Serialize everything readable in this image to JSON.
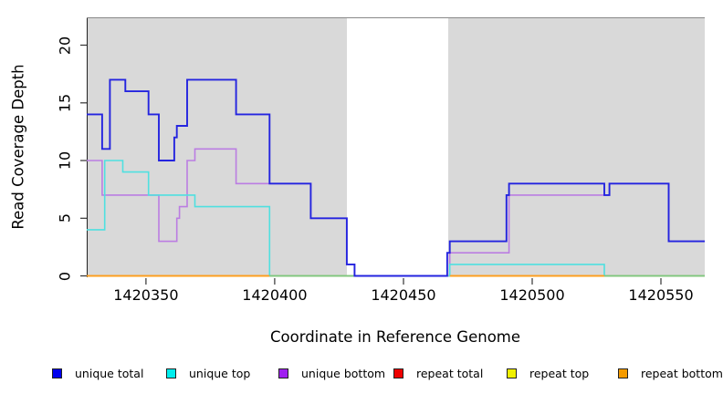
{
  "figure": {
    "background": "#ffffff",
    "panel_background": "#d9d9d9",
    "no_data_band_color": "#ffffff"
  },
  "chart_data": {
    "type": "line",
    "subtype": "step",
    "title": "",
    "xlabel": "Coordinate in Reference Genome",
    "ylabel": "Read Coverage Depth",
    "x_ticks": [
      1420350,
      1420400,
      1420450,
      1420500,
      1420550
    ],
    "y_ticks": [
      0,
      5,
      10,
      15,
      20
    ],
    "x_range": [
      1420327,
      1420567
    ],
    "y_range": [
      0,
      22.3
    ],
    "grid": false,
    "no_data_region": {
      "from": 1420428,
      "to": 1420467.5
    },
    "series": [
      {
        "name": "unique total",
        "color": "#2424df",
        "steps": [
          [
            1420327,
            14
          ],
          [
            1420333,
            11
          ],
          [
            1420336,
            17
          ],
          [
            1420342,
            16
          ],
          [
            1420351,
            14
          ],
          [
            1420355,
            10
          ],
          [
            1420361,
            12
          ],
          [
            1420362,
            13
          ],
          [
            1420366,
            17
          ],
          [
            1420385,
            14
          ],
          [
            1420398,
            8
          ],
          [
            1420414,
            5
          ],
          [
            1420428,
            1
          ],
          [
            1420431,
            0
          ],
          [
            1420467,
            2
          ],
          [
            1420468,
            3
          ],
          [
            1420490,
            7
          ],
          [
            1420491,
            8
          ],
          [
            1420528,
            7
          ],
          [
            1420530,
            8
          ],
          [
            1420553,
            3
          ]
        ]
      },
      {
        "name": "unique top",
        "color": "#4fe0e0",
        "steps": [
          [
            1420327,
            4
          ],
          [
            1420334,
            10
          ],
          [
            1420341,
            9
          ],
          [
            1420351,
            7
          ],
          [
            1420369,
            6
          ],
          [
            1420398,
            0
          ],
          [
            1420468,
            1
          ],
          [
            1420528,
            0
          ]
        ]
      },
      {
        "name": "unique bottom",
        "color": "#bb7de2",
        "steps": [
          [
            1420327,
            10
          ],
          [
            1420333,
            7
          ],
          [
            1420355,
            3
          ],
          [
            1420362,
            5
          ],
          [
            1420363,
            6
          ],
          [
            1420366,
            10
          ],
          [
            1420369,
            11
          ],
          [
            1420385,
            8
          ],
          [
            1420414,
            5
          ],
          [
            1420428,
            1
          ],
          [
            1420431,
            0
          ],
          [
            1420468,
            2
          ],
          [
            1420491,
            7
          ],
          [
            1420530,
            8
          ],
          [
            1420553,
            3
          ]
        ]
      },
      {
        "name": "repeat total",
        "color": "#ee0000",
        "steps": [
          [
            1420327,
            0
          ]
        ]
      },
      {
        "name": "repeat top",
        "color": "#eeee00",
        "steps": [
          [
            1420327,
            0
          ]
        ]
      },
      {
        "name": "repeat bottom",
        "color": "#ff9d1e",
        "steps": [
          [
            1420327,
            0
          ]
        ]
      }
    ],
    "baseline_segments": [
      {
        "from": 1420327,
        "to": 1420398,
        "color": "#ff9d1e"
      },
      {
        "from": 1420398,
        "to": 1420431,
        "color": "#7cc87f"
      },
      {
        "from": 1420468,
        "to": 1420528,
        "color": "#ff9d1e"
      },
      {
        "from": 1420528,
        "to": 1420567,
        "color": "#7cc87f"
      }
    ],
    "legend": {
      "position": "bottom",
      "entries": [
        {
          "label": "unique total",
          "color": "#0000ee"
        },
        {
          "label": "unique top",
          "color": "#00eeee"
        },
        {
          "label": "unique bottom",
          "color": "#a020f0"
        },
        {
          "label": "repeat total",
          "color": "#ee0000"
        },
        {
          "label": "repeat top",
          "color": "#f0f000"
        },
        {
          "label": "repeat bottom",
          "color": "#f59b00"
        }
      ]
    }
  }
}
